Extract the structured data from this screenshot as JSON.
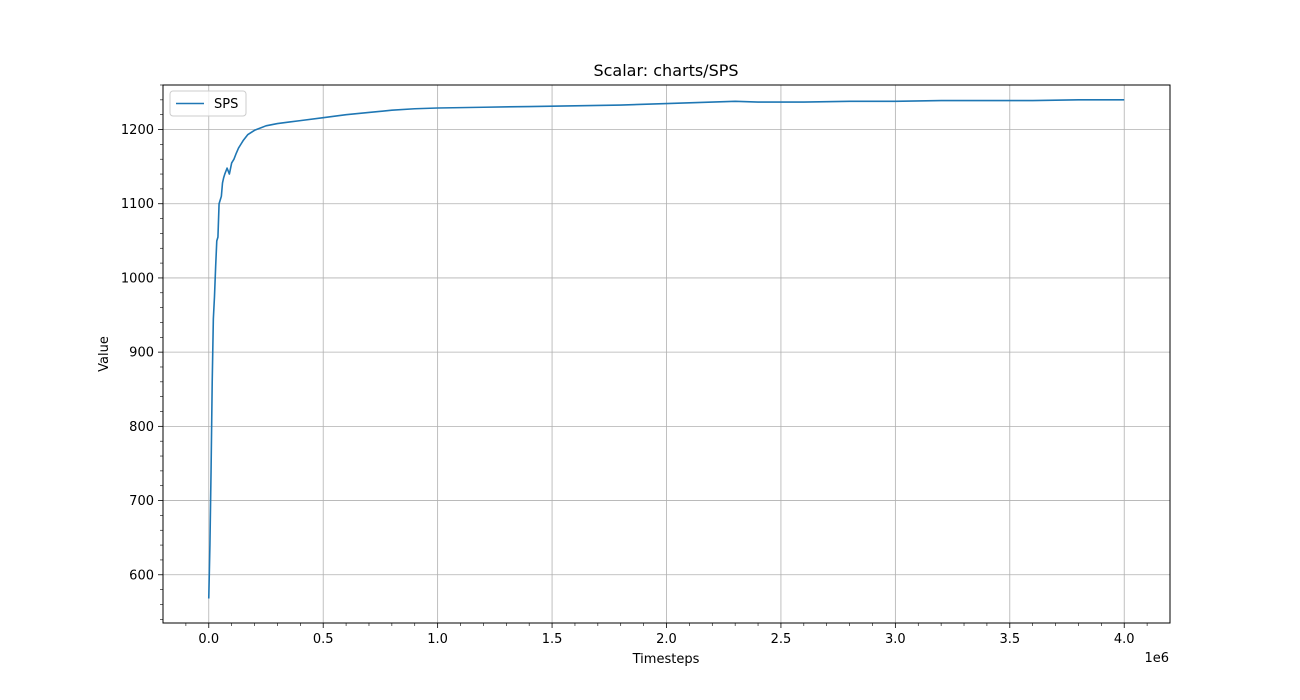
{
  "chart_data": {
    "type": "line",
    "title": "Scalar: charts/SPS",
    "xlabel": "Timesteps",
    "ylabel": "Value",
    "x_offset_label": "1e6",
    "xlim": [
      -0.2,
      4.2
    ],
    "ylim": [
      535,
      1260
    ],
    "x_ticks": [
      0.0,
      0.5,
      1.0,
      1.5,
      2.0,
      2.5,
      3.0,
      3.5,
      4.0
    ],
    "x_tick_labels": [
      "0.0",
      "0.5",
      "1.0",
      "1.5",
      "2.0",
      "2.5",
      "3.0",
      "3.5",
      "4.0"
    ],
    "y_ticks": [
      600,
      700,
      800,
      900,
      1000,
      1100,
      1200
    ],
    "y_tick_labels": [
      "600",
      "700",
      "800",
      "900",
      "1000",
      "1100",
      "1200"
    ],
    "grid": true,
    "legend_position": "top-left",
    "color": "#1f77b4",
    "series": [
      {
        "name": "SPS",
        "x": [
          0.0,
          0.005,
          0.01,
          0.015,
          0.02,
          0.025,
          0.03,
          0.035,
          0.04,
          0.045,
          0.05,
          0.055,
          0.06,
          0.065,
          0.07,
          0.08,
          0.09,
          0.1,
          0.11,
          0.12,
          0.13,
          0.14,
          0.15,
          0.17,
          0.2,
          0.25,
          0.3,
          0.35,
          0.4,
          0.5,
          0.6,
          0.7,
          0.8,
          0.9,
          1.0,
          1.2,
          1.4,
          1.6,
          1.8,
          2.0,
          2.2,
          2.3,
          2.4,
          2.6,
          2.8,
          3.0,
          3.2,
          3.4,
          3.6,
          3.8,
          4.0
        ],
        "y": [
          568,
          640,
          740,
          860,
          945,
          975,
          1015,
          1050,
          1055,
          1100,
          1105,
          1110,
          1128,
          1135,
          1140,
          1148,
          1140,
          1155,
          1160,
          1168,
          1175,
          1180,
          1185,
          1193,
          1199,
          1205,
          1208,
          1210,
          1212,
          1216,
          1220,
          1223,
          1226,
          1228,
          1229,
          1230,
          1231,
          1232,
          1233,
          1235,
          1237,
          1238,
          1237,
          1237,
          1238,
          1238,
          1239,
          1239,
          1239,
          1240,
          1240
        ]
      }
    ]
  }
}
